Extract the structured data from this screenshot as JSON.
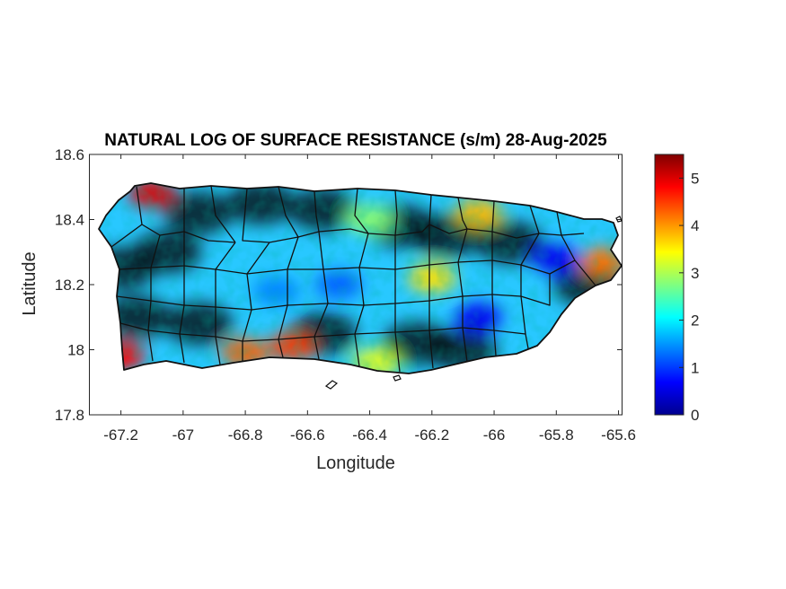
{
  "chart_data": {
    "type": "heatmap",
    "title": "NATURAL LOG OF SURFACE RESISTANCE (s/m) 28-Aug-2025",
    "xlabel": "Longitude",
    "ylabel": "Latitude",
    "xlim": [
      -67.3,
      -65.59
    ],
    "ylim": [
      17.8,
      18.6
    ],
    "xticks": [
      -67.2,
      -67,
      -66.8,
      -66.6,
      -66.4,
      -66.2,
      -66,
      -65.8,
      -65.6
    ],
    "yticks": [
      17.8,
      18,
      18.2,
      18.4,
      18.6
    ],
    "xtick_labels": [
      "-67.2",
      "-67",
      "-66.8",
      "-66.6",
      "-66.4",
      "-66.2",
      "-66",
      "-65.8",
      "-65.6"
    ],
    "ytick_labels": [
      "17.8",
      "18",
      "18.2",
      "18.4",
      "18.6"
    ],
    "colorbar": {
      "colormap": "jet",
      "range": [
        0,
        5.5
      ],
      "ticks": [
        0,
        1,
        2,
        3,
        4,
        5
      ],
      "tick_labels": [
        "0",
        "1",
        "2",
        "3",
        "4",
        "5"
      ]
    },
    "region": "Puerto Rico",
    "grid": false,
    "features": [
      {
        "lon": -67.1,
        "lat": 18.48,
        "value": 5.0
      },
      {
        "lon": -67.2,
        "lat": 17.98,
        "value": 4.8
      },
      {
        "lon": -66.8,
        "lat": 17.99,
        "value": 4.3
      },
      {
        "lon": -66.65,
        "lat": 18.01,
        "value": 4.5
      },
      {
        "lon": -65.65,
        "lat": 18.27,
        "value": 4.2
      },
      {
        "lon": -65.8,
        "lat": 18.28,
        "value": 0.6
      },
      {
        "lon": -66.05,
        "lat": 18.1,
        "value": 0.6
      },
      {
        "lon": -66.5,
        "lat": 18.2,
        "value": 1.2
      },
      {
        "lon": -66.7,
        "lat": 18.18,
        "value": 1.4
      },
      {
        "lon": -66.2,
        "lat": 18.22,
        "value": 3.6
      },
      {
        "lon": -66.05,
        "lat": 18.42,
        "value": 3.8
      },
      {
        "lon": -66.38,
        "lat": 17.96,
        "value": 3.3
      },
      {
        "lon": -66.4,
        "lat": 18.4,
        "value": 2.8
      }
    ]
  }
}
